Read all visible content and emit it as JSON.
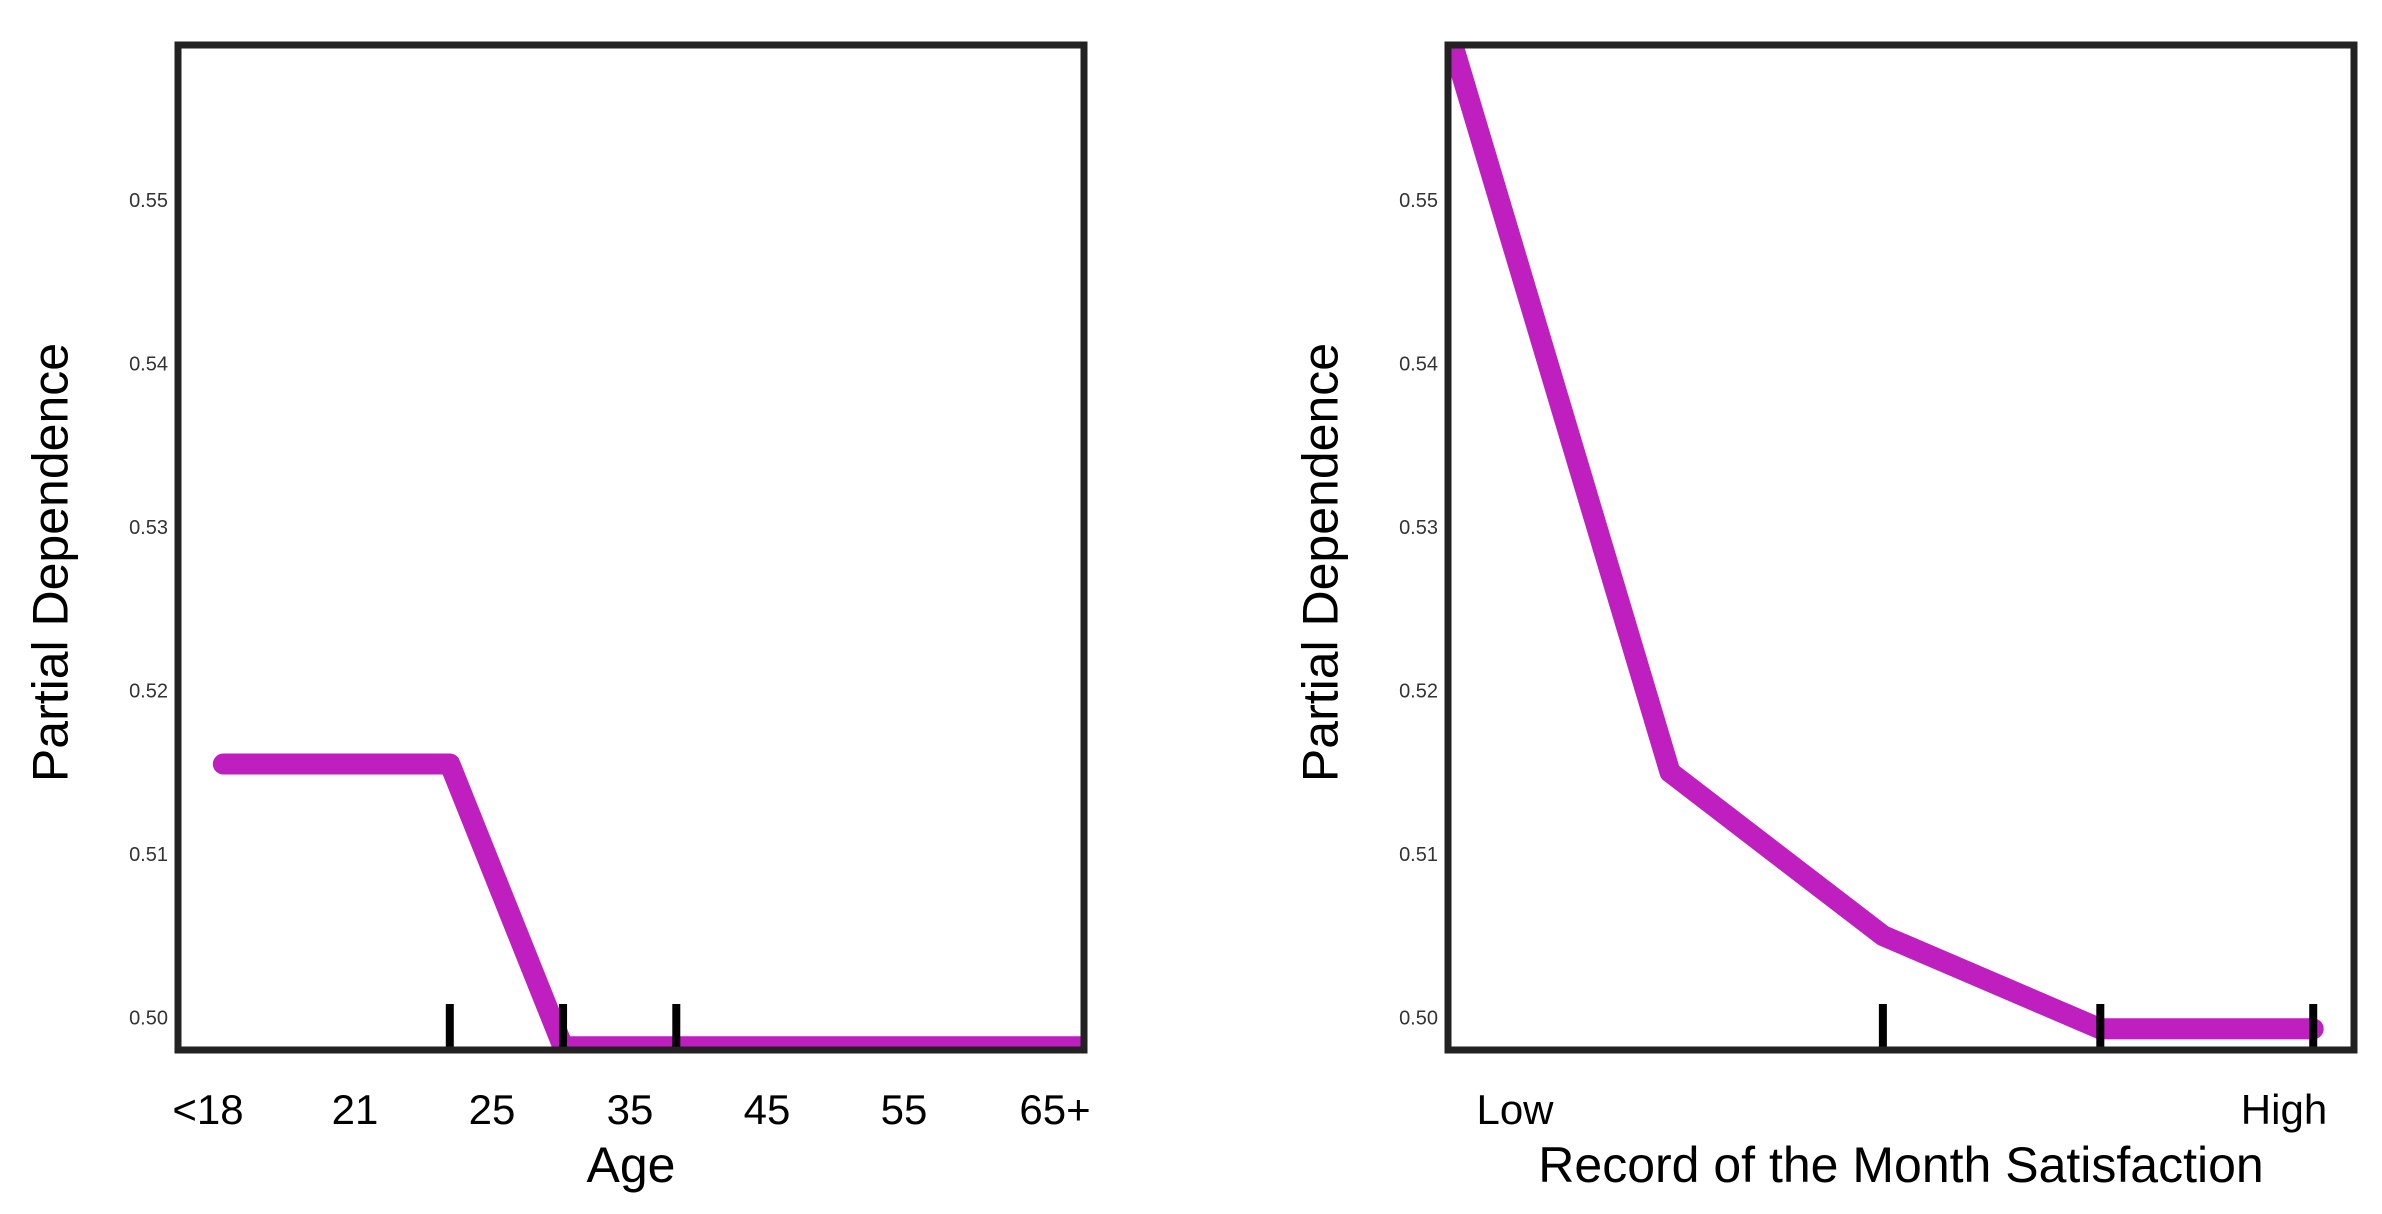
{
  "chart_data": [
    {
      "type": "line",
      "title": "",
      "xlabel": "Age",
      "ylabel": "Partial Dependence",
      "x_ticks": [
        "<18",
        "21",
        "25",
        "35",
        "45",
        "55",
        "65+"
      ],
      "y_ticks": [
        "0.50",
        "0.51",
        "0.52",
        "0.53",
        "0.54",
        "0.55"
      ],
      "ylim": [
        0.498,
        0.5595
      ],
      "grid": false,
      "legend": "none",
      "series": [
        {
          "color": "#bf1fbf",
          "x": [
            0.05,
            0.3,
            0.425,
            1.0
          ],
          "y": [
            0.5155,
            0.5155,
            0.4982,
            0.4982
          ]
        }
      ],
      "rug": [
        0.3,
        0.425,
        0.55
      ]
    },
    {
      "type": "line",
      "title": "",
      "xlabel": "Record of the Month Satisfaction",
      "ylabel": "Partial Dependence",
      "x_ticks": [
        "Low",
        "High"
      ],
      "y_ticks": [
        "0.50",
        "0.51",
        "0.52",
        "0.53",
        "0.54",
        "0.55"
      ],
      "ylim": [
        0.498,
        0.5595
      ],
      "grid": false,
      "legend": "none",
      "series": [
        {
          "color": "#bf1fbf",
          "x": [
            0.0,
            0.245,
            0.48,
            0.72,
            0.955
          ],
          "y": [
            0.5605,
            0.515,
            0.505,
            0.4993,
            0.4993
          ]
        }
      ],
      "rug": [
        0.48,
        0.72,
        0.955
      ]
    }
  ]
}
